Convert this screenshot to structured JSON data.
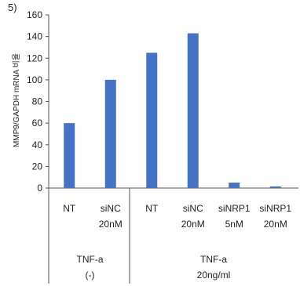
{
  "corner_text": "5)",
  "chart_data": {
    "type": "bar",
    "ylabel": "MMP9/GAPDH mRNA 비율",
    "ylim": [
      0,
      160
    ],
    "yticks": [
      0,
      20,
      40,
      60,
      80,
      100,
      120,
      140,
      160
    ],
    "grid": false,
    "bar_color": "#4472C4",
    "categories": [
      {
        "line1": "NT",
        "line2": "",
        "value": 60
      },
      {
        "line1": "siNC",
        "line2": "20nM",
        "value": 100
      },
      {
        "line1": "NT",
        "line2": "",
        "value": 125
      },
      {
        "line1": "siNC",
        "line2": "20nM",
        "value": 143
      },
      {
        "line1": "siNRP1",
        "line2": "5nM",
        "value": 5
      },
      {
        "line1": "siNRP1",
        "line2": "20nM",
        "value": 1.5
      }
    ],
    "groups": [
      {
        "line1": "TNF-a",
        "line2": "(-)",
        "span": [
          0,
          1
        ]
      },
      {
        "line1": "TNF-a",
        "line2": "20ng/ml",
        "span": [
          2,
          5
        ]
      }
    ]
  }
}
